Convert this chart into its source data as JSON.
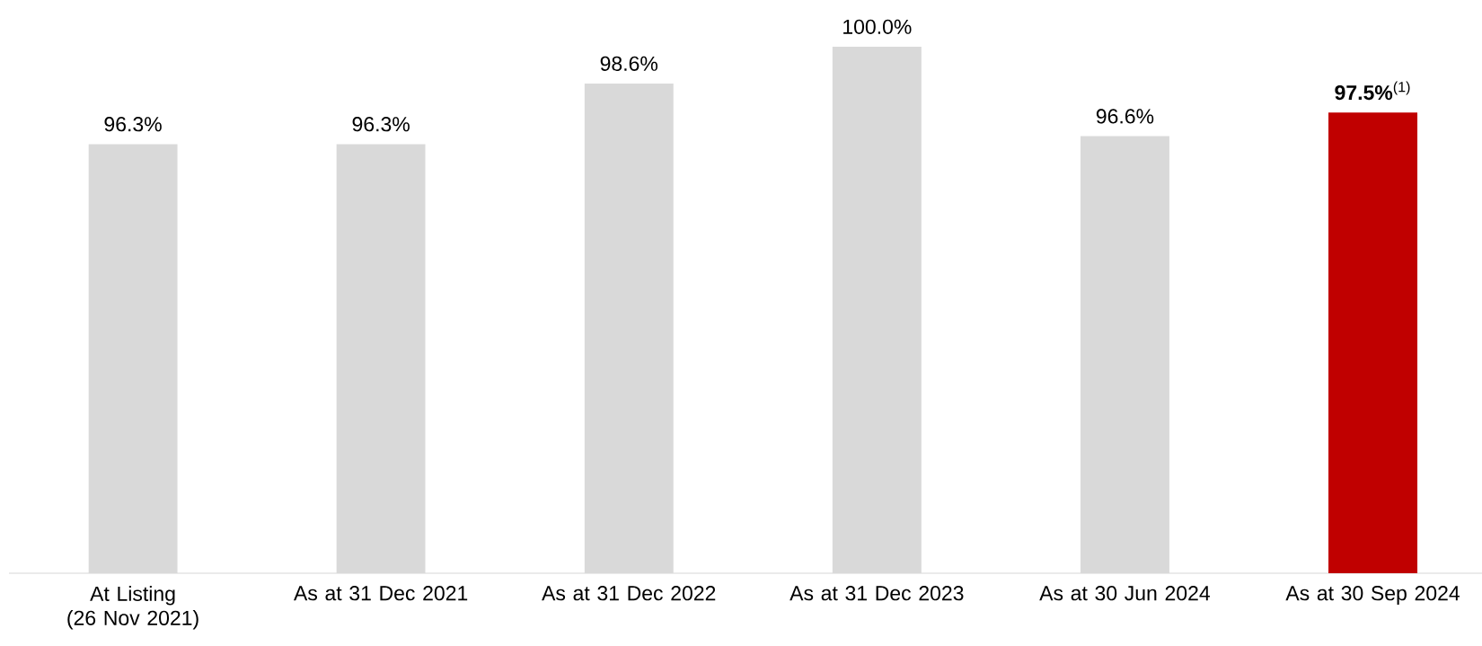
{
  "chart_data": {
    "type": "bar",
    "categories": [
      "At Listing\n(26 Nov 2021)",
      "As at 31 Dec 2021",
      "As at 31 Dec 2022",
      "As at  31 Dec 2023",
      "As at 30 Jun 2024",
      "As at 30 Sep 2024"
    ],
    "values": [
      96.3,
      96.3,
      98.6,
      100.0,
      96.6,
      97.5
    ],
    "colors": [
      "#d9d9d9",
      "#d9d9d9",
      "#d9d9d9",
      "#d9d9d9",
      "#d9d9d9",
      "#c00000"
    ],
    "value_labels": [
      "96.3%",
      "96.3%",
      "98.6%",
      "100.0%",
      "96.6%",
      "**97.5%**$^{(1)}$"
    ],
    "ylim": [
      80,
      100
    ]
  }
}
